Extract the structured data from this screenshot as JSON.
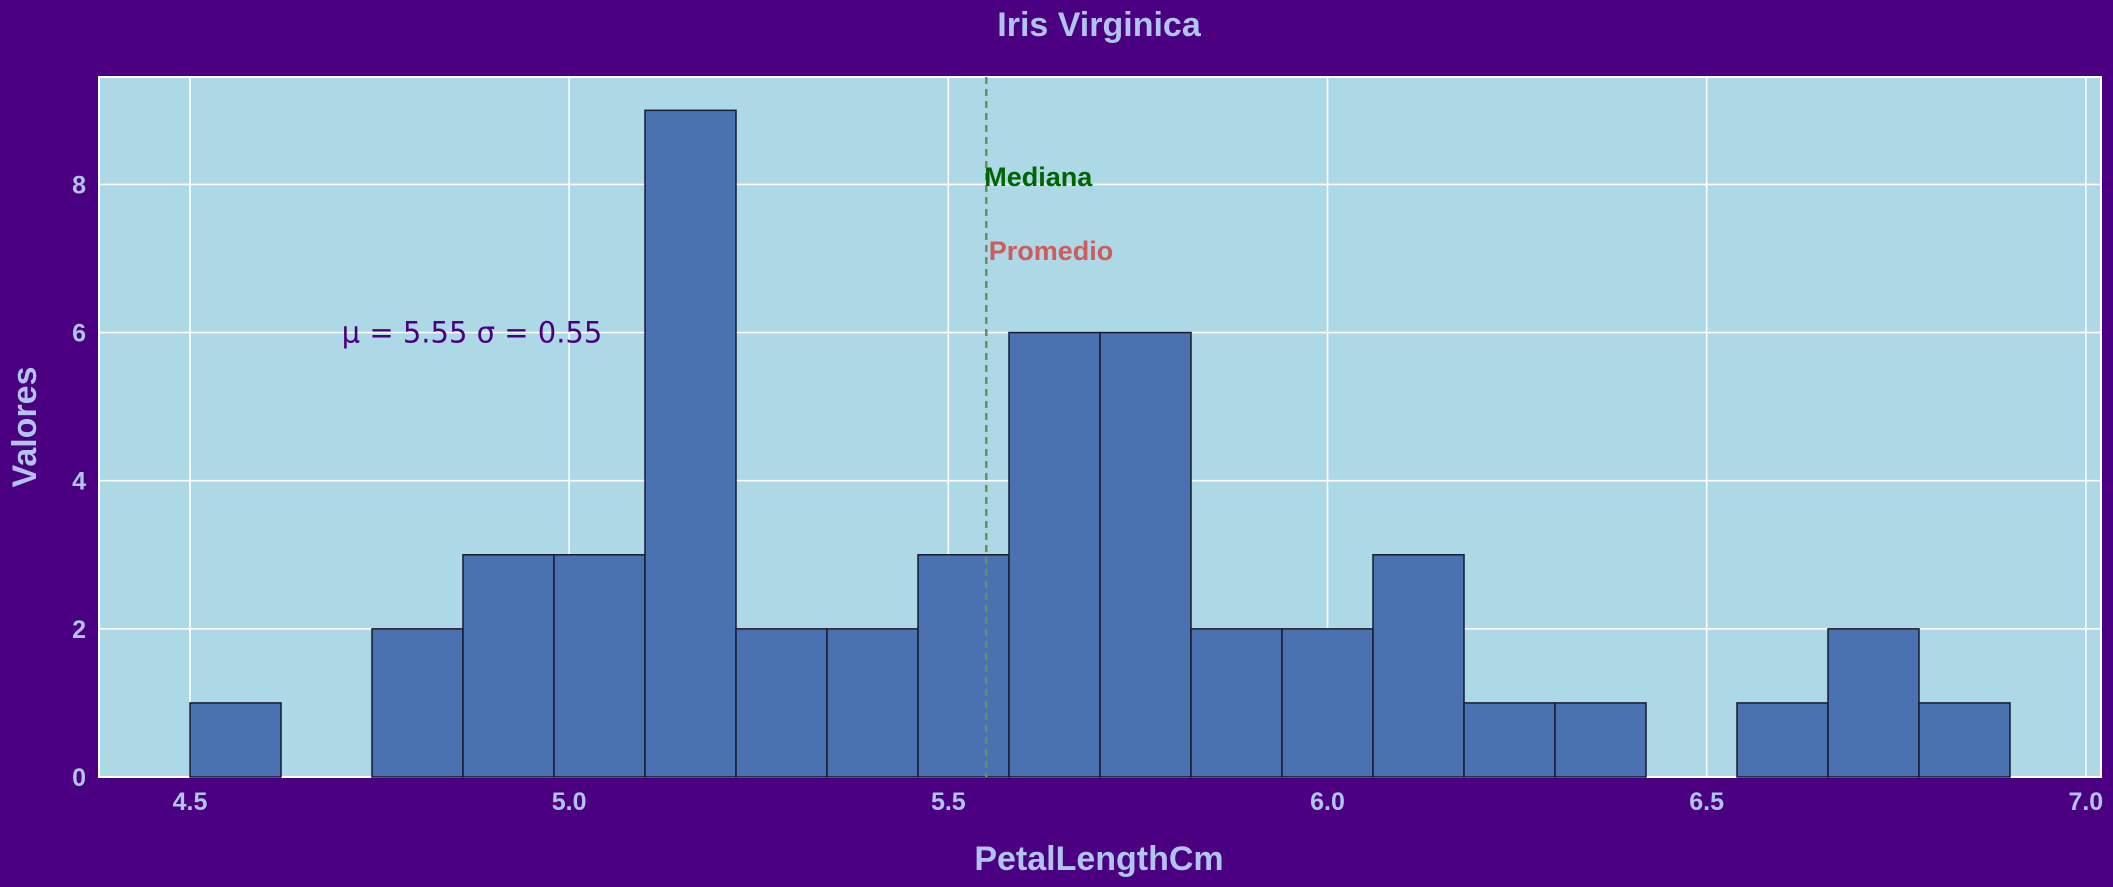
{
  "chart_data": {
    "type": "bar",
    "title": "Iris Virginica",
    "xlabel": "PetalLengthCm",
    "ylabel": "Valores",
    "xlim": [
      4.38,
      7.02
    ],
    "ylim": [
      0,
      9.45
    ],
    "x_ticks": [
      "4.5",
      "5.0",
      "5.5",
      "6.0",
      "6.5",
      "7.0"
    ],
    "y_ticks": [
      "0",
      "2",
      "4",
      "6",
      "8"
    ],
    "grid": true,
    "bins": [
      {
        "start": 4.5,
        "end": 4.62,
        "count": 1
      },
      {
        "start": 4.62,
        "end": 4.74,
        "count": 0
      },
      {
        "start": 4.74,
        "end": 4.86,
        "count": 2
      },
      {
        "start": 4.86,
        "end": 4.98,
        "count": 3
      },
      {
        "start": 4.98,
        "end": 5.1,
        "count": 3
      },
      {
        "start": 5.1,
        "end": 5.22,
        "count": 9
      },
      {
        "start": 5.22,
        "end": 5.34,
        "count": 2
      },
      {
        "start": 5.34,
        "end": 5.46,
        "count": 2
      },
      {
        "start": 5.46,
        "end": 5.58,
        "count": 3
      },
      {
        "start": 5.58,
        "end": 5.7,
        "count": 6
      },
      {
        "start": 5.7,
        "end": 5.82,
        "count": 6
      },
      {
        "start": 5.82,
        "end": 5.94,
        "count": 2
      },
      {
        "start": 5.94,
        "end": 6.06,
        "count": 2
      },
      {
        "start": 6.06,
        "end": 6.18,
        "count": 3
      },
      {
        "start": 6.18,
        "end": 6.3,
        "count": 1
      },
      {
        "start": 6.3,
        "end": 6.42,
        "count": 1
      },
      {
        "start": 6.42,
        "end": 6.54,
        "count": 0
      },
      {
        "start": 6.54,
        "end": 6.66,
        "count": 1
      },
      {
        "start": 6.66,
        "end": 6.78,
        "count": 2
      },
      {
        "start": 6.78,
        "end": 6.9,
        "count": 1
      }
    ],
    "median_line": {
      "x": 5.55,
      "label": "Mediana",
      "label_y": 8.1,
      "color": "#006400"
    },
    "mean_line": {
      "x": 5.552,
      "label": "Promedio",
      "label_y": 7.1,
      "color": "#cd5c5c"
    },
    "stats_annotation": {
      "text": "μ = 5.55  σ = 0.55",
      "x": 4.7,
      "y": 6.0
    },
    "colors": {
      "background": "#4b0082",
      "plot_background": "#add8e6",
      "bar_fill": "#4a72b0",
      "bar_edge": "#1a1a2e",
      "grid": "#ffffff",
      "text": "#b0c4ee",
      "reference_line": "#6b8e5a"
    }
  }
}
